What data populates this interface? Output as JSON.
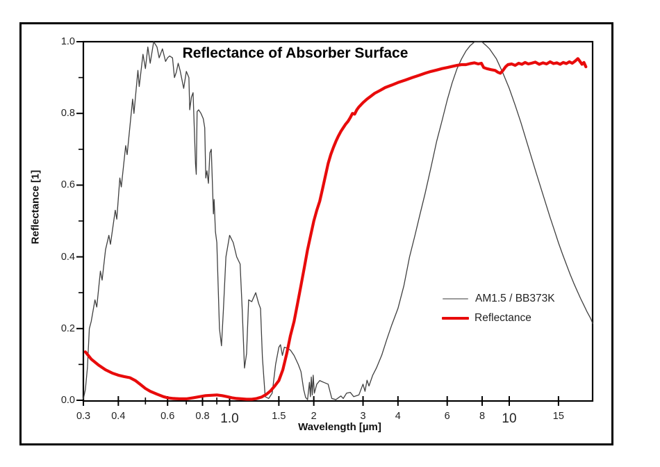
{
  "figure": {
    "title": "Reflectance of Absorber Surface",
    "x_axis_label": "Wavelength [µm]",
    "y_axis_label": "Reflectance [1]",
    "legend": [
      {
        "label": "AM1.5 / BB373K",
        "color": "#9a9a9a",
        "sample_thickness": 2
      },
      {
        "label": "Reflectance",
        "color": "#e80b0b",
        "sample_thickness": 4
      }
    ]
  },
  "chart_data": {
    "type": "line",
    "title": "Reflectance of Absorber Surface",
    "xlabel": "Wavelength [µm]",
    "ylabel": "Reflectance [1]",
    "x_scale": "log",
    "xlim": [
      0.3,
      19.9
    ],
    "ylim": [
      0.0,
      1.0
    ],
    "grid": false,
    "legend_position": "center-right",
    "x_ticks": [
      {
        "value": 0.3,
        "label": "0.3",
        "big": false
      },
      {
        "value": 0.4,
        "label": "0.4",
        "big": false
      },
      {
        "value": 0.6,
        "label": "0.6",
        "big": false
      },
      {
        "value": 0.8,
        "label": "0.8",
        "big": false
      },
      {
        "value": 1.0,
        "label": "1.0",
        "big": true
      },
      {
        "value": 1.5,
        "label": "1.5",
        "big": false
      },
      {
        "value": 2,
        "label": "2",
        "big": false
      },
      {
        "value": 3,
        "label": "3",
        "big": false
      },
      {
        "value": 4,
        "label": "4",
        "big": false
      },
      {
        "value": 6,
        "label": "6",
        "big": false
      },
      {
        "value": 8,
        "label": "8",
        "big": false
      },
      {
        "value": 10,
        "label": "10",
        "big": true
      },
      {
        "value": 15,
        "label": "15",
        "big": false
      }
    ],
    "x_minor_ticks": [
      0.5,
      0.7,
      0.9
    ],
    "y_ticks": [
      {
        "value": 0.0,
        "label": "0.0"
      },
      {
        "value": 0.2,
        "label": "0.2"
      },
      {
        "value": 0.4,
        "label": "0.4"
      },
      {
        "value": 0.6,
        "label": "0.6"
      },
      {
        "value": 0.8,
        "label": "0.8"
      },
      {
        "value": 1.0,
        "label": "1.0"
      }
    ],
    "y_minor_ticks": [
      0.1,
      0.3,
      0.5,
      0.7,
      0.9
    ],
    "series": [
      {
        "name": "AM1.5 / BB373K",
        "color": "#3f3f3f",
        "width": 1.3,
        "points": [
          [
            0.3,
            0.004
          ],
          [
            0.305,
            0.03
          ],
          [
            0.31,
            0.09
          ],
          [
            0.315,
            0.2
          ],
          [
            0.32,
            0.22
          ],
          [
            0.33,
            0.28
          ],
          [
            0.335,
            0.26
          ],
          [
            0.345,
            0.36
          ],
          [
            0.35,
            0.335
          ],
          [
            0.36,
            0.42
          ],
          [
            0.37,
            0.46
          ],
          [
            0.375,
            0.435
          ],
          [
            0.39,
            0.53
          ],
          [
            0.395,
            0.505
          ],
          [
            0.405,
            0.62
          ],
          [
            0.41,
            0.595
          ],
          [
            0.425,
            0.71
          ],
          [
            0.43,
            0.685
          ],
          [
            0.45,
            0.84
          ],
          [
            0.455,
            0.8
          ],
          [
            0.47,
            0.92
          ],
          [
            0.475,
            0.875
          ],
          [
            0.49,
            0.965
          ],
          [
            0.5,
            0.925
          ],
          [
            0.51,
            0.985
          ],
          [
            0.52,
            0.94
          ],
          [
            0.535,
            1.0
          ],
          [
            0.55,
            0.985
          ],
          [
            0.56,
            0.955
          ],
          [
            0.575,
            0.98
          ],
          [
            0.59,
            0.945
          ],
          [
            0.6,
            0.955
          ],
          [
            0.61,
            0.96
          ],
          [
            0.625,
            0.955
          ],
          [
            0.635,
            0.9
          ],
          [
            0.645,
            0.915
          ],
          [
            0.655,
            0.94
          ],
          [
            0.665,
            0.92
          ],
          [
            0.685,
            0.87
          ],
          [
            0.7,
            0.917
          ],
          [
            0.715,
            0.9
          ],
          [
            0.72,
            0.81
          ],
          [
            0.73,
            0.845
          ],
          [
            0.74,
            0.858
          ],
          [
            0.755,
            0.66
          ],
          [
            0.76,
            0.63
          ],
          [
            0.765,
            0.805
          ],
          [
            0.775,
            0.81
          ],
          [
            0.79,
            0.8
          ],
          [
            0.805,
            0.785
          ],
          [
            0.815,
            0.76
          ],
          [
            0.822,
            0.62
          ],
          [
            0.83,
            0.64
          ],
          [
            0.84,
            0.605
          ],
          [
            0.85,
            0.69
          ],
          [
            0.86,
            0.7
          ],
          [
            0.875,
            0.52
          ],
          [
            0.88,
            0.56
          ],
          [
            0.89,
            0.47
          ],
          [
            0.9,
            0.44
          ],
          [
            0.92,
            0.2
          ],
          [
            0.935,
            0.152
          ],
          [
            0.95,
            0.25
          ],
          [
            0.97,
            0.4
          ],
          [
            1.0,
            0.46
          ],
          [
            1.03,
            0.44
          ],
          [
            1.06,
            0.4
          ],
          [
            1.09,
            0.38
          ],
          [
            1.11,
            0.25
          ],
          [
            1.13,
            0.09
          ],
          [
            1.15,
            0.13
          ],
          [
            1.17,
            0.28
          ],
          [
            1.2,
            0.275
          ],
          [
            1.24,
            0.3
          ],
          [
            1.27,
            0.27
          ],
          [
            1.29,
            0.256
          ],
          [
            1.31,
            0.12
          ],
          [
            1.34,
            0.01
          ],
          [
            1.38,
            0.005
          ],
          [
            1.42,
            0.02
          ],
          [
            1.46,
            0.1
          ],
          [
            1.5,
            0.148
          ],
          [
            1.52,
            0.155
          ],
          [
            1.545,
            0.125
          ],
          [
            1.57,
            0.148
          ],
          [
            1.61,
            0.145
          ],
          [
            1.65,
            0.14
          ],
          [
            1.7,
            0.125
          ],
          [
            1.76,
            0.1
          ],
          [
            1.8,
            0.08
          ],
          [
            1.84,
            0.03
          ],
          [
            1.87,
            0.008
          ],
          [
            1.9,
            0.002
          ],
          [
            1.93,
            0.05
          ],
          [
            1.945,
            0.01
          ],
          [
            1.96,
            0.065
          ],
          [
            1.975,
            0.015
          ],
          [
            1.99,
            0.07
          ],
          [
            2.01,
            0.02
          ],
          [
            2.05,
            0.045
          ],
          [
            2.1,
            0.055
          ],
          [
            2.17,
            0.05
          ],
          [
            2.25,
            0.045
          ],
          [
            2.32,
            0.005
          ],
          [
            2.4,
            0.002
          ],
          [
            2.5,
            0.012
          ],
          [
            2.55,
            0.005
          ],
          [
            2.62,
            0.02
          ],
          [
            2.7,
            0.022
          ],
          [
            2.78,
            0.01
          ],
          [
            2.9,
            0.015
          ],
          [
            3.0,
            0.045
          ],
          [
            3.05,
            0.025
          ],
          [
            3.1,
            0.056
          ],
          [
            3.15,
            0.04
          ],
          [
            3.25,
            0.07
          ],
          [
            3.35,
            0.09
          ],
          [
            3.5,
            0.126
          ],
          [
            3.65,
            0.17
          ],
          [
            3.8,
            0.21
          ],
          [
            4.0,
            0.256
          ],
          [
            4.2,
            0.32
          ],
          [
            4.4,
            0.4
          ],
          [
            4.6,
            0.46
          ],
          [
            4.8,
            0.52
          ],
          [
            5.0,
            0.576
          ],
          [
            5.25,
            0.65
          ],
          [
            5.5,
            0.722
          ],
          [
            5.75,
            0.78
          ],
          [
            6.0,
            0.837
          ],
          [
            6.25,
            0.885
          ],
          [
            6.5,
            0.924
          ],
          [
            6.75,
            0.952
          ],
          [
            7.0,
            0.974
          ],
          [
            7.25,
            0.989
          ],
          [
            7.5,
            0.999
          ],
          [
            7.77,
            1.0
          ],
          [
            8.0,
            0.999
          ],
          [
            8.25,
            0.99
          ],
          [
            8.5,
            0.98
          ],
          [
            9.0,
            0.952
          ],
          [
            9.5,
            0.912
          ],
          [
            10.0,
            0.87
          ],
          [
            10.5,
            0.823
          ],
          [
            11.0,
            0.775
          ],
          [
            11.5,
            0.726
          ],
          [
            12.0,
            0.678
          ],
          [
            12.5,
            0.633
          ],
          [
            13.0,
            0.59
          ],
          [
            13.5,
            0.549
          ],
          [
            14.0,
            0.51
          ],
          [
            14.5,
            0.474
          ],
          [
            15.0,
            0.439
          ],
          [
            15.5,
            0.408
          ],
          [
            16.0,
            0.379
          ],
          [
            16.5,
            0.352
          ],
          [
            17.0,
            0.327
          ],
          [
            17.5,
            0.305
          ],
          [
            18.0,
            0.284
          ],
          [
            18.5,
            0.265
          ],
          [
            19.0,
            0.246
          ],
          [
            19.5,
            0.23
          ],
          [
            19.9,
            0.214
          ]
        ]
      },
      {
        "name": "Reflectance",
        "color": "#e80b0b",
        "width": 4.2,
        "points": [
          [
            0.305,
            0.135
          ],
          [
            0.32,
            0.115
          ],
          [
            0.34,
            0.098
          ],
          [
            0.36,
            0.085
          ],
          [
            0.38,
            0.076
          ],
          [
            0.4,
            0.07
          ],
          [
            0.42,
            0.066
          ],
          [
            0.44,
            0.063
          ],
          [
            0.46,
            0.055
          ],
          [
            0.48,
            0.044
          ],
          [
            0.5,
            0.033
          ],
          [
            0.52,
            0.025
          ],
          [
            0.55,
            0.017
          ],
          [
            0.58,
            0.01
          ],
          [
            0.6,
            0.007
          ],
          [
            0.63,
            0.005
          ],
          [
            0.66,
            0.004
          ],
          [
            0.7,
            0.004
          ],
          [
            0.74,
            0.007
          ],
          [
            0.78,
            0.01
          ],
          [
            0.82,
            0.013
          ],
          [
            0.86,
            0.014
          ],
          [
            0.9,
            0.015
          ],
          [
            0.94,
            0.013
          ],
          [
            0.98,
            0.01
          ],
          [
            1.02,
            0.007
          ],
          [
            1.06,
            0.005
          ],
          [
            1.1,
            0.004
          ],
          [
            1.15,
            0.003
          ],
          [
            1.2,
            0.003
          ],
          [
            1.25,
            0.005
          ],
          [
            1.3,
            0.009
          ],
          [
            1.35,
            0.016
          ],
          [
            1.4,
            0.026
          ],
          [
            1.45,
            0.04
          ],
          [
            1.5,
            0.055
          ],
          [
            1.55,
            0.085
          ],
          [
            1.6,
            0.13
          ],
          [
            1.65,
            0.18
          ],
          [
            1.7,
            0.22
          ],
          [
            1.75,
            0.27
          ],
          [
            1.8,
            0.32
          ],
          [
            1.85,
            0.37
          ],
          [
            1.9,
            0.42
          ],
          [
            1.95,
            0.46
          ],
          [
            2.0,
            0.5
          ],
          [
            2.05,
            0.53
          ],
          [
            2.1,
            0.555
          ],
          [
            2.15,
            0.59
          ],
          [
            2.2,
            0.625
          ],
          [
            2.25,
            0.66
          ],
          [
            2.3,
            0.685
          ],
          [
            2.35,
            0.705
          ],
          [
            2.4,
            0.722
          ],
          [
            2.45,
            0.737
          ],
          [
            2.5,
            0.75
          ],
          [
            2.55,
            0.76
          ],
          [
            2.6,
            0.77
          ],
          [
            2.65,
            0.778
          ],
          [
            2.7,
            0.788
          ],
          [
            2.75,
            0.8
          ],
          [
            2.8,
            0.798
          ],
          [
            2.85,
            0.81
          ],
          [
            2.9,
            0.818
          ],
          [
            3.0,
            0.83
          ],
          [
            3.1,
            0.84
          ],
          [
            3.2,
            0.848
          ],
          [
            3.3,
            0.856
          ],
          [
            3.45,
            0.864
          ],
          [
            3.6,
            0.872
          ],
          [
            3.8,
            0.879
          ],
          [
            4.0,
            0.886
          ],
          [
            4.25,
            0.893
          ],
          [
            4.5,
            0.9
          ],
          [
            4.75,
            0.906
          ],
          [
            5.0,
            0.912
          ],
          [
            5.25,
            0.917
          ],
          [
            5.5,
            0.921
          ],
          [
            5.75,
            0.925
          ],
          [
            6.0,
            0.928
          ],
          [
            6.25,
            0.931
          ],
          [
            6.5,
            0.934
          ],
          [
            6.75,
            0.936
          ],
          [
            7.0,
            0.936
          ],
          [
            7.25,
            0.939
          ],
          [
            7.5,
            0.941
          ],
          [
            7.75,
            0.938
          ],
          [
            7.95,
            0.94
          ],
          [
            8.1,
            0.928
          ],
          [
            8.3,
            0.925
          ],
          [
            8.6,
            0.922
          ],
          [
            8.9,
            0.92
          ],
          [
            9.1,
            0.915
          ],
          [
            9.3,
            0.912
          ],
          [
            9.5,
            0.92
          ],
          [
            9.7,
            0.93
          ],
          [
            9.9,
            0.936
          ],
          [
            10.2,
            0.938
          ],
          [
            10.5,
            0.934
          ],
          [
            10.8,
            0.94
          ],
          [
            11.1,
            0.937
          ],
          [
            11.4,
            0.942
          ],
          [
            11.7,
            0.938
          ],
          [
            12.0,
            0.94
          ],
          [
            12.4,
            0.943
          ],
          [
            12.8,
            0.937
          ],
          [
            13.2,
            0.941
          ],
          [
            13.6,
            0.938
          ],
          [
            14.0,
            0.944
          ],
          [
            14.4,
            0.939
          ],
          [
            14.8,
            0.941
          ],
          [
            15.2,
            0.937
          ],
          [
            15.6,
            0.942
          ],
          [
            16.0,
            0.939
          ],
          [
            16.4,
            0.944
          ],
          [
            16.8,
            0.94
          ],
          [
            17.2,
            0.946
          ],
          [
            17.6,
            0.953
          ],
          [
            17.9,
            0.945
          ],
          [
            18.2,
            0.937
          ],
          [
            18.5,
            0.942
          ],
          [
            18.8,
            0.93
          ]
        ]
      }
    ]
  }
}
